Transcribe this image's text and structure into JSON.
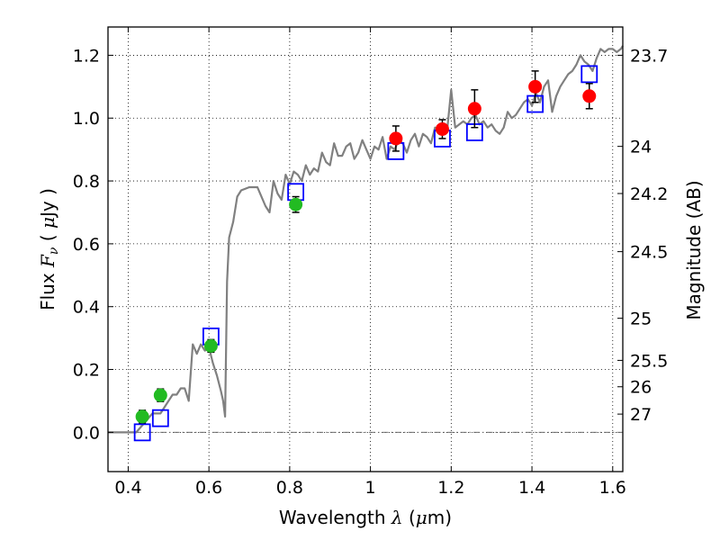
{
  "chart_data": {
    "type": "scatter",
    "xlabel": "Wavelength  λ (μm)",
    "xlabel_parts": {
      "text": "Wavelength  ",
      "symbol": "λ",
      "unit_open": " (",
      "unit_mu": "μ",
      "unit_close": "m)"
    },
    "ylabel": "Flux  F_ν  ( μJy )",
    "ylabel_parts": {
      "text": "Flux  ",
      "symbol": "F",
      "sub": "ν",
      "unit_open": "  ( ",
      "unit_mu": "μ",
      "unit_close": "Jy )"
    },
    "y2label": "Magnitude (AB)",
    "xlim": [
      0.35,
      1.625
    ],
    "ylim": [
      -0.125,
      1.29
    ],
    "grid": true,
    "x_ticks": [
      {
        "value": 0.4,
        "label": "0.4"
      },
      {
        "value": 0.6,
        "label": "0.6"
      },
      {
        "value": 0.8,
        "label": "0.8"
      },
      {
        "value": 1.0,
        "label": "1"
      },
      {
        "value": 1.2,
        "label": "1.2"
      },
      {
        "value": 1.4,
        "label": "1.4"
      },
      {
        "value": 1.6,
        "label": "1.6"
      }
    ],
    "y_ticks": [
      {
        "value": 0.0,
        "label": "0.0"
      },
      {
        "value": 0.2,
        "label": "0.2"
      },
      {
        "value": 0.4,
        "label": "0.4"
      },
      {
        "value": 0.6,
        "label": "0.6"
      },
      {
        "value": 0.8,
        "label": "0.8"
      },
      {
        "value": 1.0,
        "label": "1.0"
      },
      {
        "value": 1.2,
        "label": "1.2"
      }
    ],
    "y2_ticks": [
      {
        "flux": 1.2,
        "label": "23.7"
      },
      {
        "flux": 0.91,
        "label": "24"
      },
      {
        "flux": 0.76,
        "label": "24.2"
      },
      {
        "flux": 0.575,
        "label": "24.5"
      },
      {
        "flux": 0.363,
        "label": "25"
      },
      {
        "flux": 0.229,
        "label": "25.5"
      },
      {
        "flux": 0.145,
        "label": "26"
      },
      {
        "flux": 0.058,
        "label": "27"
      }
    ],
    "series": [
      {
        "name": "model-spectrum",
        "kind": "line",
        "color": "#808080",
        "x": [
          0.35,
          0.4,
          0.42,
          0.44,
          0.46,
          0.48,
          0.5,
          0.51,
          0.52,
          0.53,
          0.54,
          0.55,
          0.56,
          0.57,
          0.58,
          0.59,
          0.6,
          0.61,
          0.62,
          0.63,
          0.635,
          0.64,
          0.645,
          0.65,
          0.66,
          0.67,
          0.68,
          0.7,
          0.72,
          0.73,
          0.74,
          0.75,
          0.76,
          0.77,
          0.78,
          0.79,
          0.8,
          0.81,
          0.82,
          0.83,
          0.84,
          0.85,
          0.86,
          0.87,
          0.88,
          0.89,
          0.9,
          0.91,
          0.92,
          0.93,
          0.94,
          0.95,
          0.96,
          0.97,
          0.98,
          0.99,
          1.0,
          1.01,
          1.02,
          1.03,
          1.04,
          1.05,
          1.06,
          1.07,
          1.08,
          1.09,
          1.1,
          1.11,
          1.12,
          1.13,
          1.14,
          1.15,
          1.16,
          1.17,
          1.18,
          1.19,
          1.2,
          1.21,
          1.22,
          1.23,
          1.24,
          1.25,
          1.26,
          1.27,
          1.28,
          1.29,
          1.3,
          1.31,
          1.32,
          1.33,
          1.34,
          1.35,
          1.36,
          1.37,
          1.38,
          1.39,
          1.4,
          1.41,
          1.42,
          1.43,
          1.44,
          1.45,
          1.46,
          1.47,
          1.48,
          1.49,
          1.5,
          1.51,
          1.52,
          1.53,
          1.54,
          1.55,
          1.56,
          1.57,
          1.58,
          1.59,
          1.6,
          1.61,
          1.62,
          1.625
        ],
        "y": [
          0.0,
          0.0,
          0.0,
          0.03,
          0.06,
          0.06,
          0.1,
          0.12,
          0.12,
          0.14,
          0.14,
          0.1,
          0.28,
          0.25,
          0.28,
          0.26,
          0.27,
          0.22,
          0.18,
          0.13,
          0.1,
          0.05,
          0.48,
          0.62,
          0.67,
          0.75,
          0.77,
          0.78,
          0.78,
          0.75,
          0.72,
          0.7,
          0.8,
          0.76,
          0.74,
          0.82,
          0.79,
          0.83,
          0.82,
          0.8,
          0.85,
          0.82,
          0.84,
          0.83,
          0.89,
          0.86,
          0.85,
          0.92,
          0.88,
          0.88,
          0.91,
          0.92,
          0.87,
          0.89,
          0.93,
          0.9,
          0.87,
          0.91,
          0.9,
          0.94,
          0.87,
          0.91,
          0.9,
          0.93,
          0.92,
          0.89,
          0.93,
          0.95,
          0.91,
          0.95,
          0.94,
          0.92,
          0.97,
          0.96,
          0.95,
          0.96,
          1.09,
          0.97,
          0.98,
          0.99,
          0.98,
          1.0,
          1.01,
          0.98,
          0.99,
          0.97,
          0.98,
          0.96,
          0.95,
          0.97,
          1.02,
          1.0,
          1.01,
          1.03,
          1.05,
          1.06,
          1.04,
          1.08,
          1.05,
          1.1,
          1.12,
          1.02,
          1.07,
          1.1,
          1.12,
          1.14,
          1.15,
          1.17,
          1.2,
          1.18,
          1.17,
          1.15,
          1.19,
          1.22,
          1.21,
          1.22,
          1.22,
          1.21,
          1.22,
          1.23
        ]
      },
      {
        "name": "green-observed",
        "kind": "points",
        "color": "#22bb22",
        "x": [
          0.435,
          0.48,
          0.605,
          0.815
        ],
        "y": [
          0.05,
          0.118,
          0.275,
          0.725
        ],
        "yerr": [
          0.02,
          0.02,
          0.02,
          0.025
        ]
      },
      {
        "name": "red-observed",
        "kind": "points",
        "color": "#ff0000",
        "x": [
          1.063,
          1.178,
          1.258,
          1.408,
          1.542
        ],
        "y": [
          0.935,
          0.965,
          1.03,
          1.1,
          1.07
        ],
        "yerr": [
          0.04,
          0.03,
          0.06,
          0.05,
          0.04
        ]
      },
      {
        "name": "blue-model",
        "kind": "squares",
        "color": "#0000ff",
        "x": [
          0.435,
          0.48,
          0.605,
          0.815,
          1.063,
          1.178,
          1.258,
          1.408,
          1.542
        ],
        "y": [
          0.0,
          0.045,
          0.305,
          0.765,
          0.895,
          0.935,
          0.955,
          1.045,
          1.14
        ]
      }
    ]
  }
}
